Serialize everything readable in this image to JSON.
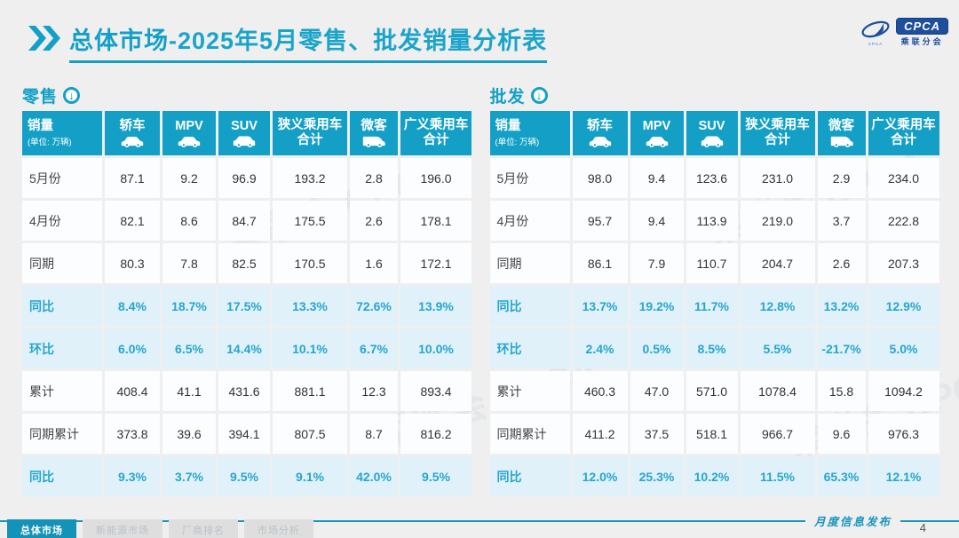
{
  "page": {
    "title_bold": "总体市场",
    "title_rest": "-2025年5月零售、批发销量分析表",
    "page_number": "4",
    "footer_note": "月度信息发布"
  },
  "logo": {
    "badge": "CPCA",
    "cn": "乘联分会",
    "sub": "CPCA"
  },
  "watermark_text": "乘联会",
  "colors": {
    "teal": "#14a0c6",
    "highlight_bg": "#e0f1f9",
    "highlight_text": "#27a6ce",
    "logo_blue": "#1d4f9c"
  },
  "columns": [
    {
      "label": "销量",
      "sub": "(单位: 万辆)",
      "icon": null
    },
    {
      "label": "轿车",
      "icon": "sedan-icon"
    },
    {
      "label": "MPV",
      "icon": "mpv-icon"
    },
    {
      "label": "SUV",
      "icon": "suv-icon"
    },
    {
      "label": "狭义乘用车",
      "label2": "合计",
      "icon": null
    },
    {
      "label": "微客",
      "icon": "van-icon"
    },
    {
      "label": "广义乘用车",
      "label2": "合计",
      "icon": null
    }
  ],
  "tables": [
    {
      "name": "retail",
      "section_label": "零售",
      "rows": [
        {
          "label": "5月份",
          "highlight": false,
          "values": [
            "87.1",
            "9.2",
            "96.9",
            "193.2",
            "2.8",
            "196.0"
          ]
        },
        {
          "label": "4月份",
          "highlight": false,
          "values": [
            "82.1",
            "8.6",
            "84.7",
            "175.5",
            "2.6",
            "178.1"
          ]
        },
        {
          "label": "同期",
          "highlight": false,
          "values": [
            "80.3",
            "7.8",
            "82.5",
            "170.5",
            "1.6",
            "172.1"
          ]
        },
        {
          "label": "同比",
          "highlight": true,
          "values": [
            "8.4%",
            "18.7%",
            "17.5%",
            "13.3%",
            "72.6%",
            "13.9%"
          ]
        },
        {
          "label": "环比",
          "highlight": true,
          "values": [
            "6.0%",
            "6.5%",
            "14.4%",
            "10.1%",
            "6.7%",
            "10.0%"
          ]
        },
        {
          "label": "累计",
          "highlight": false,
          "values": [
            "408.4",
            "41.1",
            "431.6",
            "881.1",
            "12.3",
            "893.4"
          ]
        },
        {
          "label": "同期累计",
          "highlight": false,
          "values": [
            "373.8",
            "39.6",
            "394.1",
            "807.5",
            "8.7",
            "816.2"
          ]
        },
        {
          "label": "同比",
          "highlight": true,
          "values": [
            "9.3%",
            "3.7%",
            "9.5%",
            "9.1%",
            "42.0%",
            "9.5%"
          ]
        }
      ]
    },
    {
      "name": "wholesale",
      "section_label": "批发",
      "rows": [
        {
          "label": "5月份",
          "highlight": false,
          "values": [
            "98.0",
            "9.4",
            "123.6",
            "231.0",
            "2.9",
            "234.0"
          ]
        },
        {
          "label": "4月份",
          "highlight": false,
          "values": [
            "95.7",
            "9.4",
            "113.9",
            "219.0",
            "3.7",
            "222.8"
          ]
        },
        {
          "label": "同期",
          "highlight": false,
          "values": [
            "86.1",
            "7.9",
            "110.7",
            "204.7",
            "2.6",
            "207.3"
          ]
        },
        {
          "label": "同比",
          "highlight": true,
          "values": [
            "13.7%",
            "19.2%",
            "11.7%",
            "12.8%",
            "13.2%",
            "12.9%"
          ]
        },
        {
          "label": "环比",
          "highlight": true,
          "values": [
            "2.4%",
            "0.5%",
            "8.5%",
            "5.5%",
            "-21.7%",
            "5.0%"
          ]
        },
        {
          "label": "累计",
          "highlight": false,
          "values": [
            "460.3",
            "47.0",
            "571.0",
            "1078.4",
            "15.8",
            "1094.2"
          ]
        },
        {
          "label": "同期累计",
          "highlight": false,
          "values": [
            "411.2",
            "37.5",
            "518.1",
            "966.7",
            "9.6",
            "976.3"
          ]
        },
        {
          "label": "同比",
          "highlight": true,
          "values": [
            "12.0%",
            "25.3%",
            "10.2%",
            "11.5%",
            "65.3%",
            "12.1%"
          ]
        }
      ]
    }
  ],
  "footer": {
    "tabs": [
      {
        "label": "总体市场",
        "active": true
      },
      {
        "label": "新能源市场",
        "active": false
      },
      {
        "label": "厂商排名",
        "active": false
      },
      {
        "label": "市场分析",
        "active": false
      }
    ]
  }
}
